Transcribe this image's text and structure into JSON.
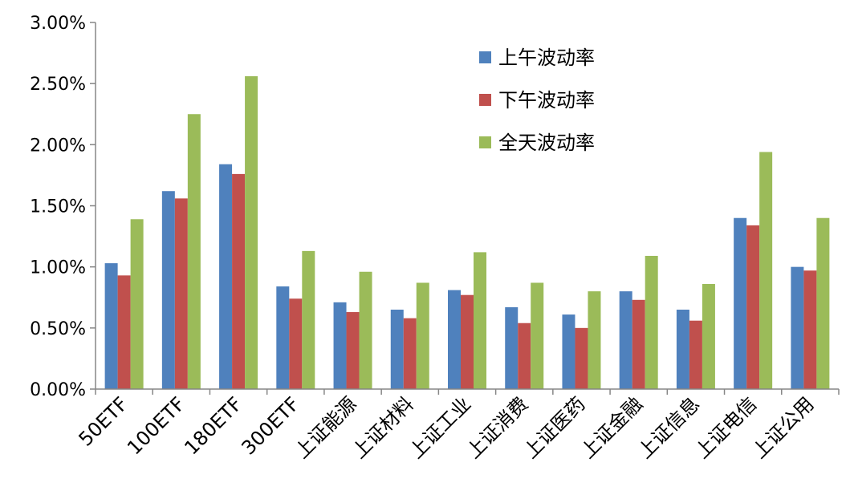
{
  "chart_data": {
    "type": "bar",
    "title": "",
    "xlabel": "",
    "ylabel": "",
    "ylim": [
      0,
      0.03
    ],
    "ytick_labels": [
      "0.00%",
      "0.50%",
      "1.00%",
      "1.50%",
      "2.00%",
      "2.50%",
      "3.00%"
    ],
    "grid": false,
    "legend_position": "top-center",
    "categories": [
      "50ETF",
      "100ETF",
      "180ETF",
      "300ETF",
      "上证能源",
      "上证材料",
      "上证工业",
      "上证消费",
      "上证医药",
      "上证金融",
      "上证信息",
      "上证电信",
      "上证公用"
    ],
    "series": [
      {
        "name": "上午波动率",
        "color": "#4F81BD",
        "values": [
          0.0103,
          0.0162,
          0.0184,
          0.0084,
          0.0071,
          0.0065,
          0.0081,
          0.0067,
          0.0061,
          0.008,
          0.0065,
          0.014,
          0.01
        ]
      },
      {
        "name": "下午波动率",
        "color": "#C0504D",
        "values": [
          0.0093,
          0.0156,
          0.0176,
          0.0074,
          0.0063,
          0.0058,
          0.0077,
          0.0054,
          0.005,
          0.0073,
          0.0056,
          0.0134,
          0.0097
        ]
      },
      {
        "name": "全天波动率",
        "color": "#9BBB59",
        "values": [
          0.0139,
          0.0225,
          0.0256,
          0.0113,
          0.0096,
          0.0087,
          0.0112,
          0.0087,
          0.008,
          0.0109,
          0.0086,
          0.0194,
          0.014
        ]
      }
    ]
  }
}
